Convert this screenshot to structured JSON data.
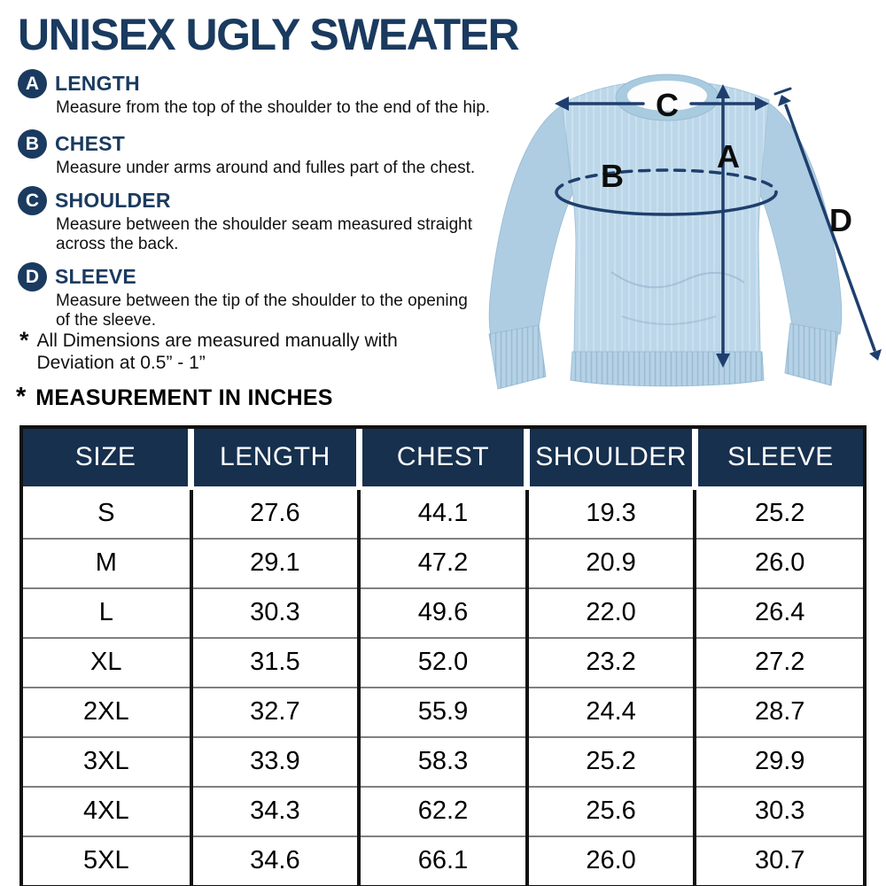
{
  "page": {
    "title": "UNISEX UGLY SWEATER",
    "measurements": [
      {
        "letter": "A",
        "label": "LENGTH",
        "lines": [
          "Measure from the top of the shoulder to the end of the hip."
        ]
      },
      {
        "letter": "B",
        "label": "CHEST",
        "lines": [
          "Measure under arms around and fulles part of the chest."
        ]
      },
      {
        "letter": "C",
        "label": "SHOULDER",
        "lines": [
          "Measure between the shoulder seam measured straight",
          "across the back."
        ]
      },
      {
        "letter": "D",
        "label": "SLEEVE",
        "lines": [
          "Measure between the tip of the shoulder to the opening",
          "of the sleeve."
        ]
      }
    ],
    "note": {
      "star": "*",
      "lines": [
        "All Dimensions are measured manually with",
        "Deviation at 0.5” - 1”"
      ]
    },
    "table_heading": {
      "star": "*",
      "text": "MEASUREMENT IN INCHES"
    },
    "diagram_labels": {
      "a": "A",
      "b": "B",
      "c": "C",
      "d": "D"
    }
  },
  "chart_data": {
    "type": "table",
    "columns": [
      "SIZE",
      "LENGTH",
      "CHEST",
      "SHOULDER",
      "SLEEVE"
    ],
    "rows": [
      [
        "S",
        "27.6",
        "44.1",
        "19.3",
        "25.2"
      ],
      [
        "M",
        "29.1",
        "47.2",
        "20.9",
        "26.0"
      ],
      [
        "L",
        "30.3",
        "49.6",
        "22.0",
        "26.4"
      ],
      [
        "XL",
        "31.5",
        "52.0",
        "23.2",
        "27.2"
      ],
      [
        "2XL",
        "32.7",
        "55.9",
        "24.4",
        "28.7"
      ],
      [
        "3XL",
        "33.9",
        "58.3",
        "25.2",
        "29.9"
      ],
      [
        "4XL",
        "34.3",
        "62.2",
        "25.6",
        "30.3"
      ],
      [
        "5XL",
        "34.6",
        "66.1",
        "26.0",
        "30.7"
      ]
    ],
    "title": "MEASUREMENT IN INCHES",
    "units": "inches"
  },
  "colors": {
    "navy_text": "#1a3a5f",
    "table_header_bg": "#16304e",
    "annotation_navy": "#1e3f6e",
    "sweater_blue": "#bcd7e9",
    "body_text": "#111111"
  }
}
